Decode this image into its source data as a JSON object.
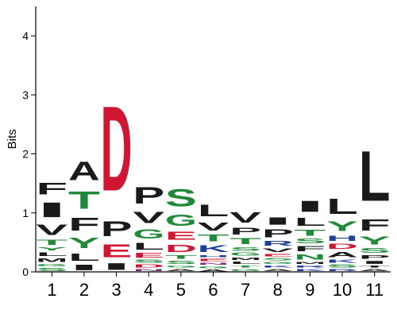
{
  "chart_data": {
    "type": "sequence-logo",
    "ylabel": "Bits",
    "xlabel": "",
    "ylim": [
      0,
      4.5
    ],
    "yticks": [
      0,
      1,
      2,
      3,
      4
    ],
    "ytick_labels": [
      "0",
      "1",
      "2",
      "3",
      "4"
    ],
    "positions": [
      "1",
      "2",
      "3",
      "4",
      "5",
      "6",
      "7",
      "8",
      "9",
      "10",
      "11"
    ],
    "grid": false,
    "colors": {
      "hydrophobic": "#1a1a1a",
      "polar": "#21893a",
      "acidic": "#cf1632",
      "basic": "#1f3f99",
      "amide": "#7a2d6a"
    },
    "stacks": [
      [
        {
          "letter": "S",
          "bits": 0.08,
          "color": "#21893a"
        },
        {
          "letter": "G",
          "bits": 0.07,
          "color": "#21893a"
        },
        {
          "letter": "M",
          "bits": 0.1,
          "color": "#1a1a1a"
        },
        {
          "letter": "L",
          "bits": 0.1,
          "color": "#1a1a1a"
        },
        {
          "letter": "Y",
          "bits": 0.08,
          "color": "#21893a"
        },
        {
          "letter": "T",
          "bits": 0.14,
          "color": "#21893a"
        },
        {
          "letter": "V",
          "bits": 0.28,
          "color": "#1a1a1a"
        },
        {
          "letter": "I",
          "bits": 0.4,
          "color": "#1a1a1a"
        },
        {
          "letter": "F",
          "bits": 0.32,
          "color": "#1a1a1a"
        }
      ],
      [
        {
          "letter": "I",
          "bits": 0.15,
          "color": "#1a1a1a"
        },
        {
          "letter": "L",
          "bits": 0.2,
          "color": "#1a1a1a"
        },
        {
          "letter": "Y",
          "bits": 0.28,
          "color": "#21893a"
        },
        {
          "letter": "F",
          "bits": 0.35,
          "color": "#1a1a1a"
        },
        {
          "letter": "T",
          "bits": 0.48,
          "color": "#21893a"
        },
        {
          "letter": "A",
          "bits": 0.5,
          "color": "#1a1a1a"
        }
      ],
      [
        {
          "letter": "I",
          "bits": 0.18,
          "color": "#1a1a1a"
        },
        {
          "letter": "E",
          "bits": 0.35,
          "color": "#cf1632"
        },
        {
          "letter": "P",
          "bits": 0.4,
          "color": "#1a1a1a"
        },
        {
          "letter": "D",
          "bits": 2.3,
          "color": "#cf1632"
        }
      ],
      [
        {
          "letter": "N",
          "bits": 0.06,
          "color": "#7a2d6a"
        },
        {
          "letter": "D",
          "bits": 0.08,
          "color": "#cf1632"
        },
        {
          "letter": "S",
          "bits": 0.08,
          "color": "#21893a"
        },
        {
          "letter": "E",
          "bits": 0.12,
          "color": "#cf1632"
        },
        {
          "letter": "L",
          "bits": 0.18,
          "color": "#1a1a1a"
        },
        {
          "letter": "G",
          "bits": 0.25,
          "color": "#21893a"
        },
        {
          "letter": "V",
          "bits": 0.3,
          "color": "#1a1a1a"
        },
        {
          "letter": "P",
          "bits": 0.45,
          "color": "#1a1a1a"
        }
      ],
      [
        {
          "letter": "A",
          "bits": 0.06,
          "color": "#1a1a1a"
        },
        {
          "letter": "G",
          "bits": 0.06,
          "color": "#21893a"
        },
        {
          "letter": "S",
          "bits": 0.08,
          "color": "#21893a"
        },
        {
          "letter": "T",
          "bits": 0.1,
          "color": "#21893a"
        },
        {
          "letter": "D",
          "bits": 0.2,
          "color": "#cf1632"
        },
        {
          "letter": "E",
          "bits": 0.22,
          "color": "#cf1632"
        },
        {
          "letter": "G",
          "bits": 0.3,
          "color": "#21893a"
        },
        {
          "letter": "S",
          "bits": 0.47,
          "color": "#21893a"
        }
      ],
      [
        {
          "letter": "A",
          "bits": 0.05,
          "color": "#1a1a1a"
        },
        {
          "letter": "G",
          "bits": 0.06,
          "color": "#21893a"
        },
        {
          "letter": "N",
          "bits": 0.06,
          "color": "#7a2d6a"
        },
        {
          "letter": "E",
          "bits": 0.07,
          "color": "#cf1632"
        },
        {
          "letter": "H",
          "bits": 0.06,
          "color": "#1f3f99"
        },
        {
          "letter": "K",
          "bits": 0.18,
          "color": "#1f3f99"
        },
        {
          "letter": "T",
          "bits": 0.18,
          "color": "#21893a"
        },
        {
          "letter": "V",
          "bits": 0.22,
          "color": "#1a1a1a"
        },
        {
          "letter": "L",
          "bits": 0.32,
          "color": "#1a1a1a"
        }
      ],
      [
        {
          "letter": "G",
          "bits": 0.06,
          "color": "#21893a"
        },
        {
          "letter": "T",
          "bits": 0.06,
          "color": "#21893a"
        },
        {
          "letter": "L",
          "bits": 0.07,
          "color": "#1a1a1a"
        },
        {
          "letter": "M",
          "bits": 0.07,
          "color": "#1a1a1a"
        },
        {
          "letter": "G",
          "bits": 0.08,
          "color": "#21893a"
        },
        {
          "letter": "S",
          "bits": 0.1,
          "color": "#21893a"
        },
        {
          "letter": "T",
          "bits": 0.16,
          "color": "#21893a"
        },
        {
          "letter": "P",
          "bits": 0.18,
          "color": "#1a1a1a"
        },
        {
          "letter": "V",
          "bits": 0.28,
          "color": "#1a1a1a"
        }
      ],
      [
        {
          "letter": "A",
          "bits": 0.06,
          "color": "#1a1a1a"
        },
        {
          "letter": "K",
          "bits": 0.06,
          "color": "#1f3f99"
        },
        {
          "letter": "G",
          "bits": 0.06,
          "color": "#21893a"
        },
        {
          "letter": "S",
          "bits": 0.07,
          "color": "#21893a"
        },
        {
          "letter": "E",
          "bits": 0.07,
          "color": "#cf1632"
        },
        {
          "letter": "V",
          "bits": 0.1,
          "color": "#1a1a1a"
        },
        {
          "letter": "R",
          "bits": 0.12,
          "color": "#1f3f99"
        },
        {
          "letter": "P",
          "bits": 0.22,
          "color": "#1a1a1a"
        },
        {
          "letter": "I",
          "bits": 0.2,
          "color": "#1a1a1a"
        }
      ],
      [
        {
          "letter": "K",
          "bits": 0.06,
          "color": "#1f3f99"
        },
        {
          "letter": "R",
          "bits": 0.06,
          "color": "#1f3f99"
        },
        {
          "letter": "M",
          "bits": 0.06,
          "color": "#1a1a1a"
        },
        {
          "letter": "N",
          "bits": 0.14,
          "color": "#21893a"
        },
        {
          "letter": "F",
          "bits": 0.14,
          "color": "#1a1a1a"
        },
        {
          "letter": "S",
          "bits": 0.12,
          "color": "#21893a"
        },
        {
          "letter": "T",
          "bits": 0.16,
          "color": "#21893a"
        },
        {
          "letter": "L",
          "bits": 0.22,
          "color": "#1a1a1a"
        },
        {
          "letter": "I",
          "bits": 0.3,
          "color": "#1a1a1a"
        }
      ],
      [
        {
          "letter": "R",
          "bits": 0.06,
          "color": "#1f3f99"
        },
        {
          "letter": "S",
          "bits": 0.08,
          "color": "#21893a"
        },
        {
          "letter": "K",
          "bits": 0.08,
          "color": "#1f3f99"
        },
        {
          "letter": "A",
          "bits": 0.14,
          "color": "#1a1a1a"
        },
        {
          "letter": "D",
          "bits": 0.14,
          "color": "#cf1632"
        },
        {
          "letter": "H",
          "bits": 0.14,
          "color": "#1f3f99"
        },
        {
          "letter": "Y",
          "bits": 0.26,
          "color": "#21893a"
        },
        {
          "letter": "L",
          "bits": 0.42,
          "color": "#1a1a1a"
        }
      ],
      [
        {
          "letter": "A",
          "bits": 0.06,
          "color": "#1a1a1a"
        },
        {
          "letter": "T",
          "bits": 0.06,
          "color": "#1a1a1a"
        },
        {
          "letter": "I",
          "bits": 0.08,
          "color": "#1a1a1a"
        },
        {
          "letter": "P",
          "bits": 0.1,
          "color": "#1a1a1a"
        },
        {
          "letter": "S",
          "bits": 0.12,
          "color": "#21893a"
        },
        {
          "letter": "Y",
          "bits": 0.22,
          "color": "#21893a"
        },
        {
          "letter": "F",
          "bits": 0.3,
          "color": "#1a1a1a"
        },
        {
          "letter": "L",
          "bits": 1.36,
          "color": "#1a1a1a"
        }
      ]
    ]
  }
}
